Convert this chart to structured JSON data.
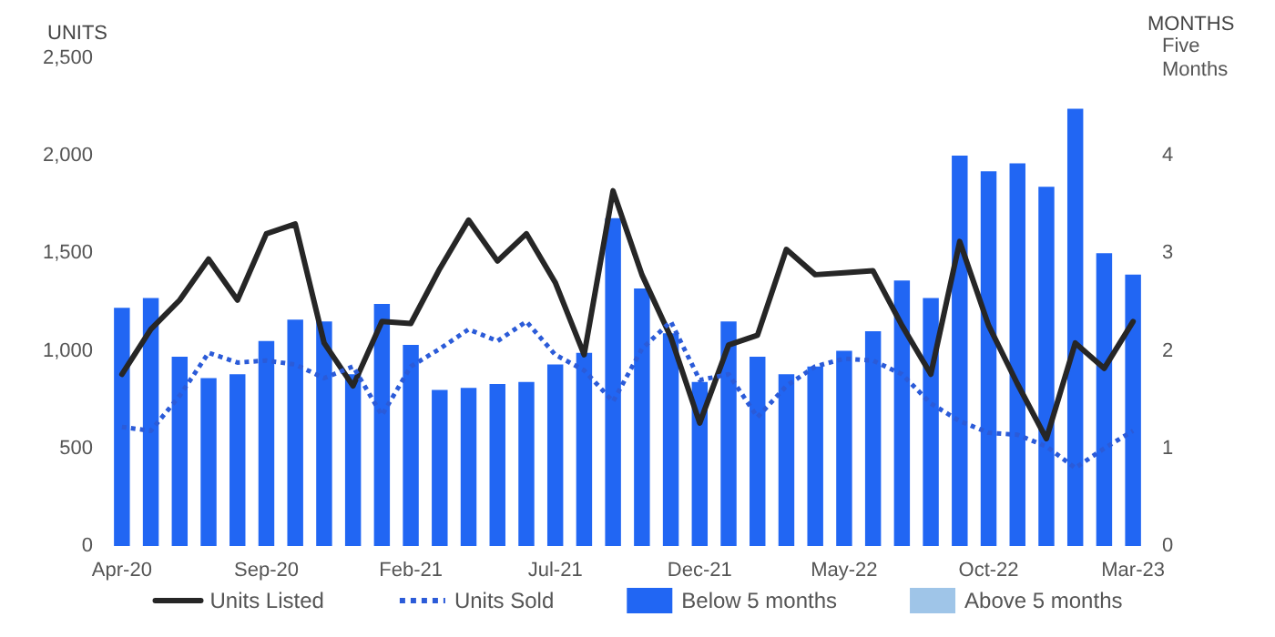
{
  "chart_data": {
    "type": "bar",
    "ylabel": "UNITS",
    "y2label": "MONTHS",
    "categories": [
      "Apr-20",
      null,
      null,
      null,
      null,
      "Sep-20",
      null,
      null,
      null,
      null,
      "Feb-21",
      null,
      null,
      null,
      null,
      "Jul-21",
      null,
      null,
      null,
      null,
      "Dec-21",
      null,
      null,
      null,
      null,
      "May-22",
      null,
      null,
      null,
      null,
      "Oct-22",
      null,
      null,
      null,
      null,
      "Mar-23"
    ],
    "series": [
      {
        "name": "Units Listed",
        "type": "line",
        "color": "#262626",
        "line_style": "solid",
        "values": [
          880,
          1110,
          1260,
          1470,
          1260,
          1600,
          1650,
          1040,
          820,
          1150,
          1140,
          1420,
          1670,
          1460,
          1600,
          1350,
          980,
          1820,
          1390,
          1070,
          630,
          1030,
          1080,
          1520,
          1390,
          1400,
          1410,
          1130,
          880,
          1560,
          1130,
          830,
          550,
          1040,
          910,
          1150
        ]
      },
      {
        "name": "Units Sold",
        "type": "line",
        "color": "#2b5bd8",
        "line_style": "dotted",
        "values": [
          610,
          590,
          770,
          990,
          940,
          950,
          930,
          860,
          920,
          670,
          920,
          1010,
          1110,
          1050,
          1150,
          980,
          900,
          740,
          1010,
          1150,
          850,
          880,
          660,
          820,
          920,
          960,
          950,
          880,
          730,
          640,
          580,
          570,
          510,
          400,
          500,
          590
        ]
      },
      {
        "name": "Below 5 months",
        "axis": "y2",
        "color": "#2166f3",
        "values": [
          2.44,
          2.54,
          1.94,
          1.72,
          1.76,
          2.1,
          2.32,
          2.3,
          1.76,
          2.48,
          2.06,
          1.6,
          1.62,
          1.66,
          1.68,
          1.86,
          1.98,
          3.36,
          2.64,
          2.18,
          1.68,
          2.3,
          1.94,
          1.76,
          1.84,
          2.0,
          2.2,
          2.72,
          2.54,
          4.0,
          3.84,
          3.92,
          3.68,
          4.48,
          3.0,
          2.78
        ]
      },
      {
        "name": "Above 5 months",
        "axis": "y2",
        "color": "#9fc5e8",
        "values": [
          null,
          null,
          null,
          null,
          null,
          null,
          null,
          null,
          null,
          null,
          null,
          null,
          null,
          null,
          null,
          null,
          null,
          null,
          null,
          null,
          null,
          null,
          null,
          null,
          null,
          null,
          null,
          null,
          null,
          null,
          null,
          null,
          null,
          null,
          null,
          null
        ]
      }
    ],
    "stacked": true,
    "ylim": [
      0,
      2500
    ],
    "yticks": [
      0,
      {
        "value": 500,
        "label": "500"
      },
      {
        "value": 1000,
        "label": "1,000"
      },
      {
        "value": 1500,
        "label": "1,500"
      },
      {
        "value": 2000,
        "label": "2,000"
      },
      {
        "value": 2500,
        "label": "2,500"
      }
    ],
    "y2lim": [
      0,
      5
    ],
    "y2ticks": [
      0,
      1,
      2,
      3,
      4,
      {
        "value": 5,
        "label": "Five Months"
      }
    ],
    "grid": false,
    "legend": "bottom",
    "marker": "none"
  }
}
